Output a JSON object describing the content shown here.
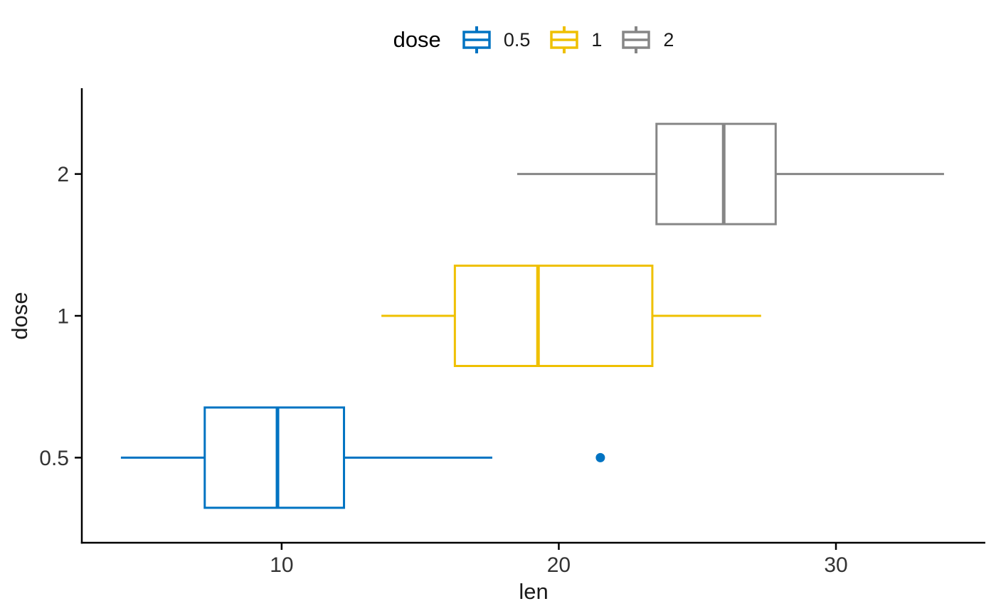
{
  "figure": {
    "background": "#ffffff",
    "axis_color": "#000000",
    "text_color": "#1a1a1a"
  },
  "chart_data": {
    "type": "boxplot",
    "orientation": "horizontal",
    "title": "",
    "xlabel": "len",
    "ylabel": "dose",
    "xlim": [
      2.79,
      35.39
    ],
    "x_ticks": [
      10,
      20,
      30
    ],
    "grid": false,
    "legend": {
      "title": "dose",
      "position": "top",
      "entries": [
        {
          "label": "0.5",
          "color": "#0073C2"
        },
        {
          "label": "1",
          "color": "#EFC000"
        },
        {
          "label": "2",
          "color": "#868686"
        }
      ]
    },
    "groups": [
      {
        "label": "0.5",
        "color": "#0073C2",
        "whisker_min": 4.2,
        "q1": 7.225,
        "median": 9.85,
        "q3": 12.25,
        "whisker_max": 17.6,
        "outliers": [
          21.5
        ]
      },
      {
        "label": "1",
        "color": "#EFC000",
        "whisker_min": 13.6,
        "q1": 16.25,
        "median": 19.25,
        "q3": 23.375,
        "whisker_max": 27.3,
        "outliers": []
      },
      {
        "label": "2",
        "color": "#868686",
        "whisker_min": 18.5,
        "q1": 23.525,
        "median": 25.95,
        "q3": 27.825,
        "whisker_max": 33.9,
        "outliers": []
      }
    ]
  }
}
